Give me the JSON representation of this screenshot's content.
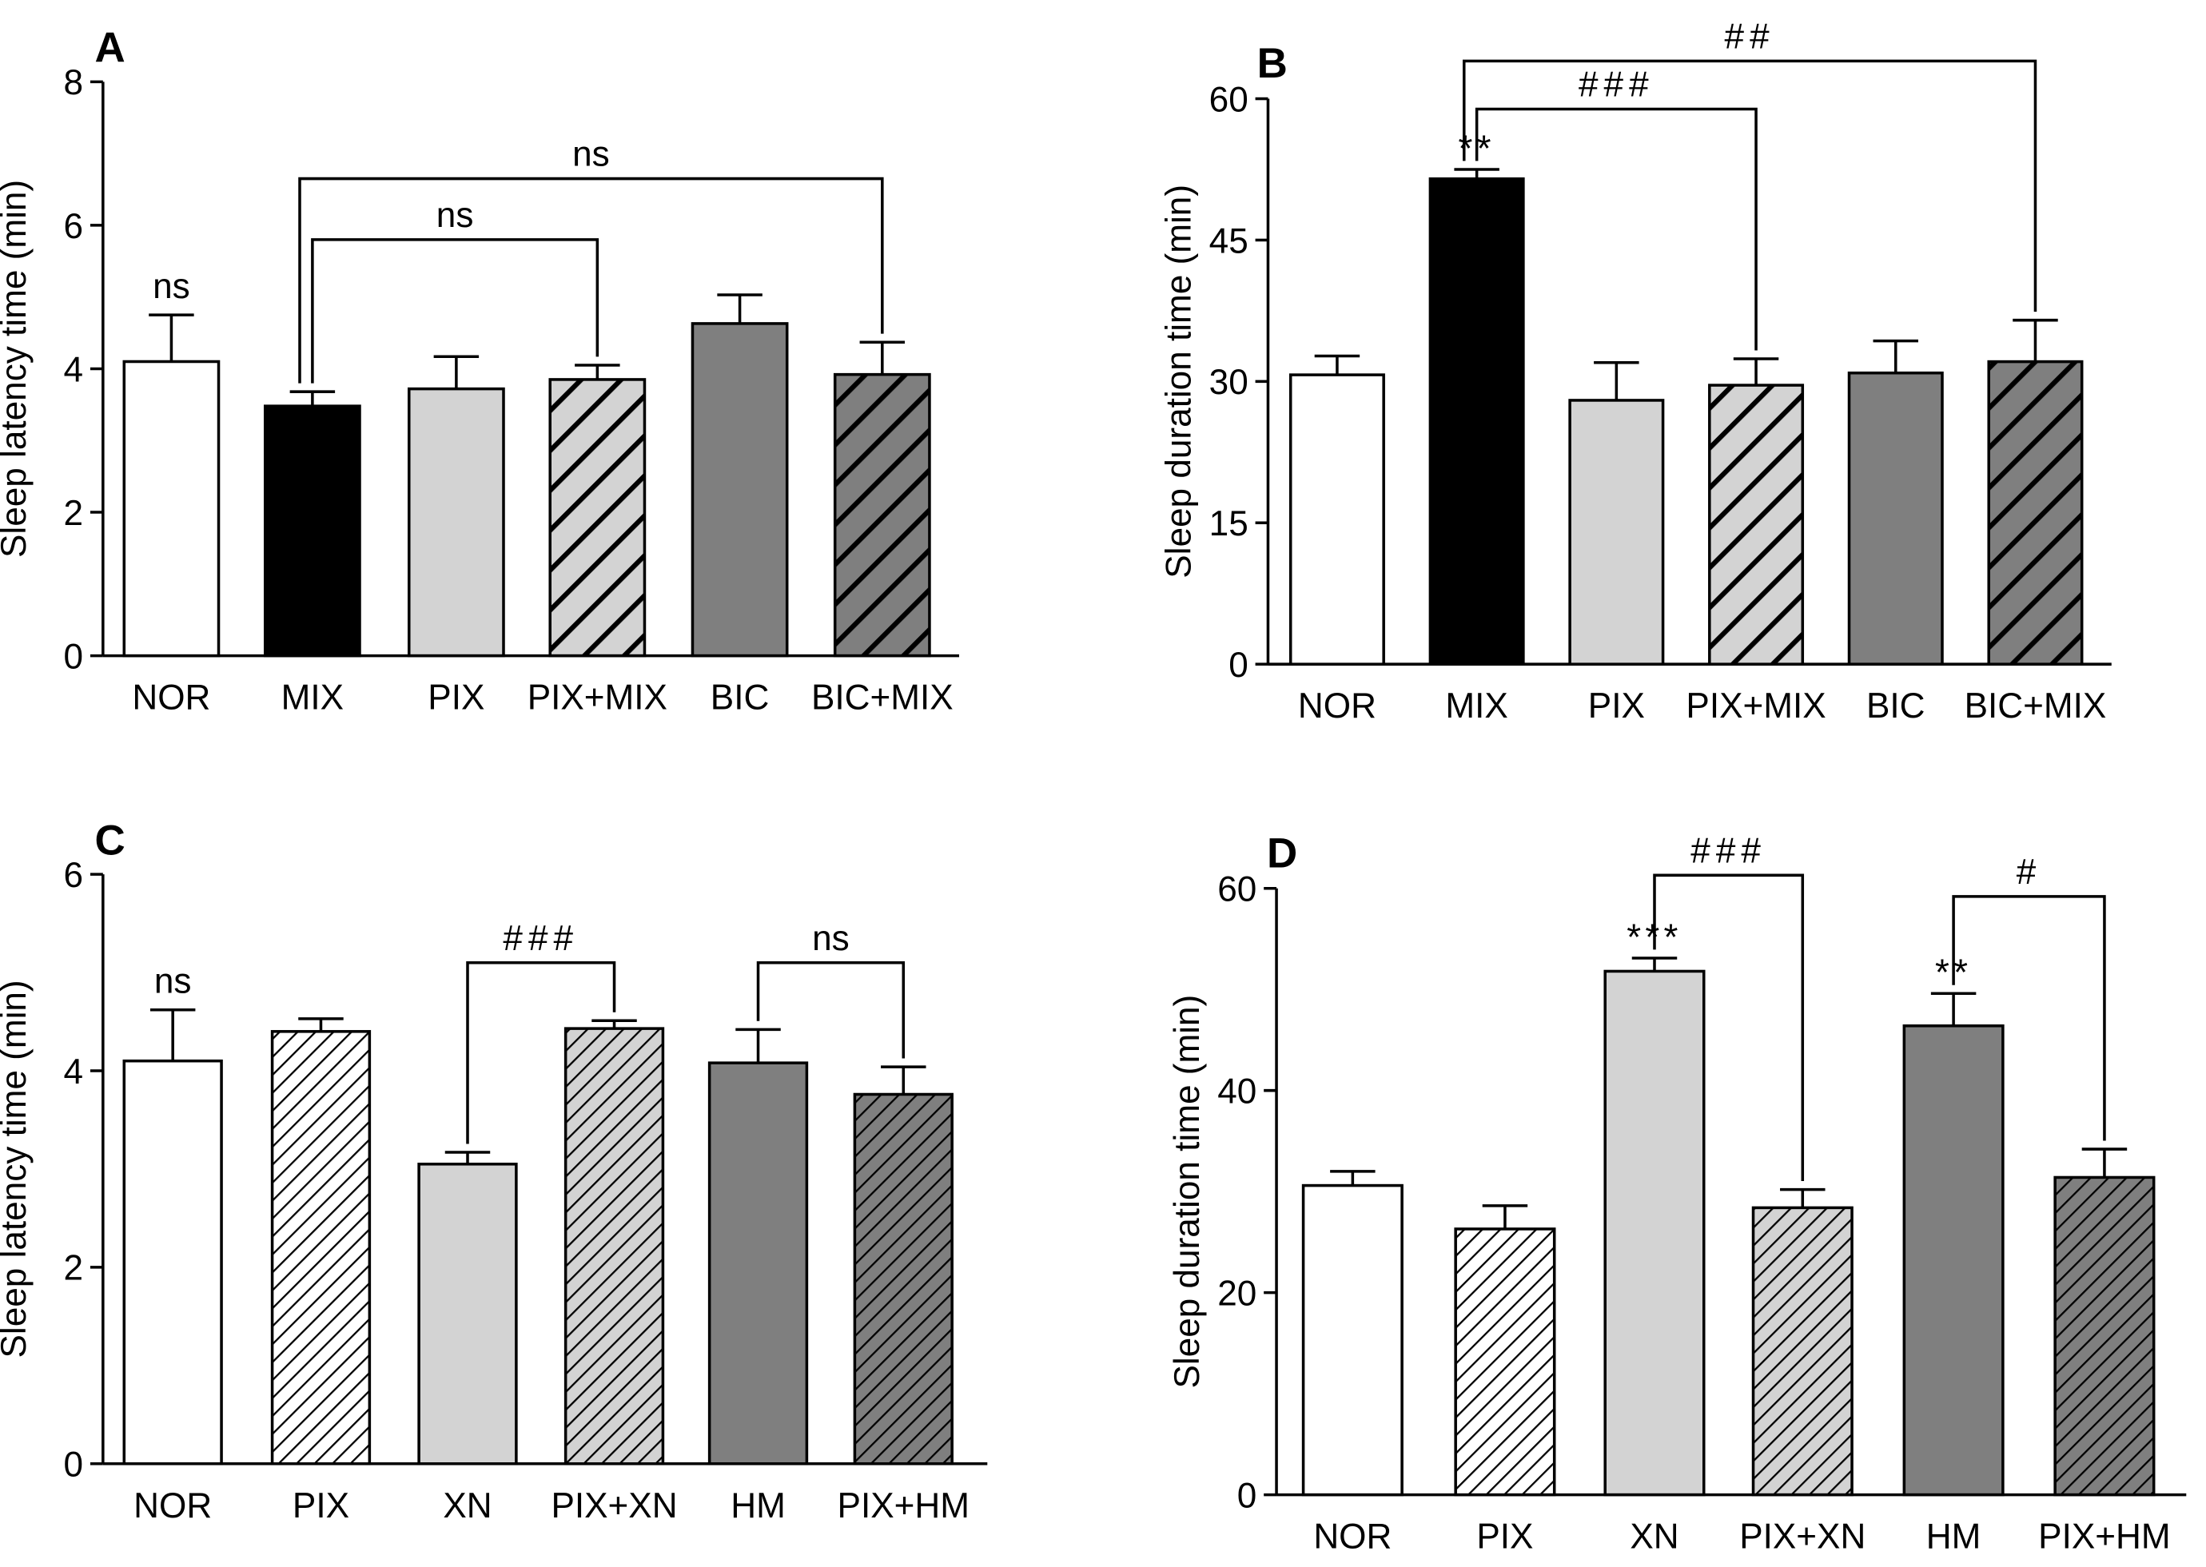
{
  "chart_data": [
    {
      "panel_label": "A",
      "type": "bar",
      "ylabel": "Sleep latency time (min)",
      "ylim": [
        0,
        8
      ],
      "yticks": [
        "0",
        "2",
        "4",
        "6",
        "8"
      ],
      "categories": [
        "NOR",
        "MIX",
        "PIX",
        "PIX+MIX",
        "BIC",
        "BIC+MIX"
      ],
      "values": [
        4.1,
        3.48,
        3.72,
        3.85,
        4.63,
        3.92
      ],
      "errors": [
        0.65,
        0.2,
        0.45,
        0.2,
        0.4,
        0.45
      ],
      "styles": [
        "white",
        "black",
        "lightgray",
        "lightgray-hatch",
        "darkgray",
        "darkgray-hatch"
      ],
      "annotations": [
        {
          "bar": 0,
          "text": "ns"
        }
      ],
      "brackets": [
        {
          "from": 1,
          "to": 3,
          "text": "ns",
          "y": 5.8
        },
        {
          "from": 1,
          "to": 5,
          "text": "ns",
          "y": 6.65
        }
      ]
    },
    {
      "panel_label": "B",
      "type": "bar",
      "ylabel": "Sleep duration time (min)",
      "ylim": [
        0,
        60
      ],
      "yticks": [
        "0",
        "15",
        "30",
        "45",
        "60"
      ],
      "categories": [
        "NOR",
        "MIX",
        "PIX",
        "PIX+MIX",
        "BIC",
        "BIC+MIX"
      ],
      "values": [
        30.7,
        51.5,
        28.0,
        29.6,
        30.9,
        32.1
      ],
      "errors": [
        2.0,
        1.0,
        4.0,
        2.8,
        3.4,
        4.4
      ],
      "styles": [
        "white",
        "black",
        "lightgray",
        "lightgray-hatch",
        "darkgray",
        "darkgray-hatch"
      ],
      "annotations": [
        {
          "bar": 1,
          "text": "**"
        }
      ],
      "brackets": [
        {
          "from": 1,
          "to": 3,
          "text": "###",
          "y": 58.9
        },
        {
          "from": 1,
          "to": 5,
          "text": "##",
          "y": 64.0
        }
      ]
    },
    {
      "panel_label": "C",
      "type": "bar",
      "ylabel": "Sleep latency time (min)",
      "ylim": [
        0,
        6
      ],
      "yticks": [
        "0",
        "2",
        "4",
        "6"
      ],
      "categories": [
        "NOR",
        "PIX",
        "XN",
        "PIX+XN",
        "HM",
        "PIX+HM"
      ],
      "values": [
        4.1,
        4.4,
        3.05,
        4.43,
        4.08,
        3.76
      ],
      "errors": [
        0.52,
        0.13,
        0.12,
        0.08,
        0.34,
        0.28
      ],
      "styles": [
        "white",
        "white-hatch",
        "lightgray",
        "lightgray-hatch",
        "darkgray",
        "darkgray-hatch"
      ],
      "annotations": [
        {
          "bar": 0,
          "text": "ns"
        }
      ],
      "brackets": [
        {
          "from": 2,
          "to": 3,
          "text": "###",
          "y": 5.1
        },
        {
          "from": 4,
          "to": 5,
          "text": "ns",
          "y": 5.1
        }
      ]
    },
    {
      "panel_label": "D",
      "type": "bar",
      "ylabel": "Sleep duration time (min)",
      "ylim": [
        0,
        60
      ],
      "yticks": [
        "0",
        "20",
        "40",
        "60"
      ],
      "categories": [
        "NOR",
        "PIX",
        "XN",
        "PIX+XN",
        "HM",
        "PIX+HM"
      ],
      "values": [
        30.6,
        26.3,
        51.8,
        28.4,
        46.4,
        31.4
      ],
      "errors": [
        1.4,
        2.3,
        1.3,
        1.8,
        3.2,
        2.8
      ],
      "styles": [
        "white",
        "white-hatch",
        "lightgray",
        "lightgray-hatch",
        "darkgray",
        "darkgray-hatch"
      ],
      "annotations": [
        {
          "bar": 2,
          "text": "***"
        },
        {
          "bar": 4,
          "text": "**"
        }
      ],
      "brackets": [
        {
          "from": 2,
          "to": 3,
          "text": "###",
          "y": 61.3
        },
        {
          "from": 4,
          "to": 5,
          "text": "#",
          "y": 59.2
        }
      ]
    }
  ]
}
